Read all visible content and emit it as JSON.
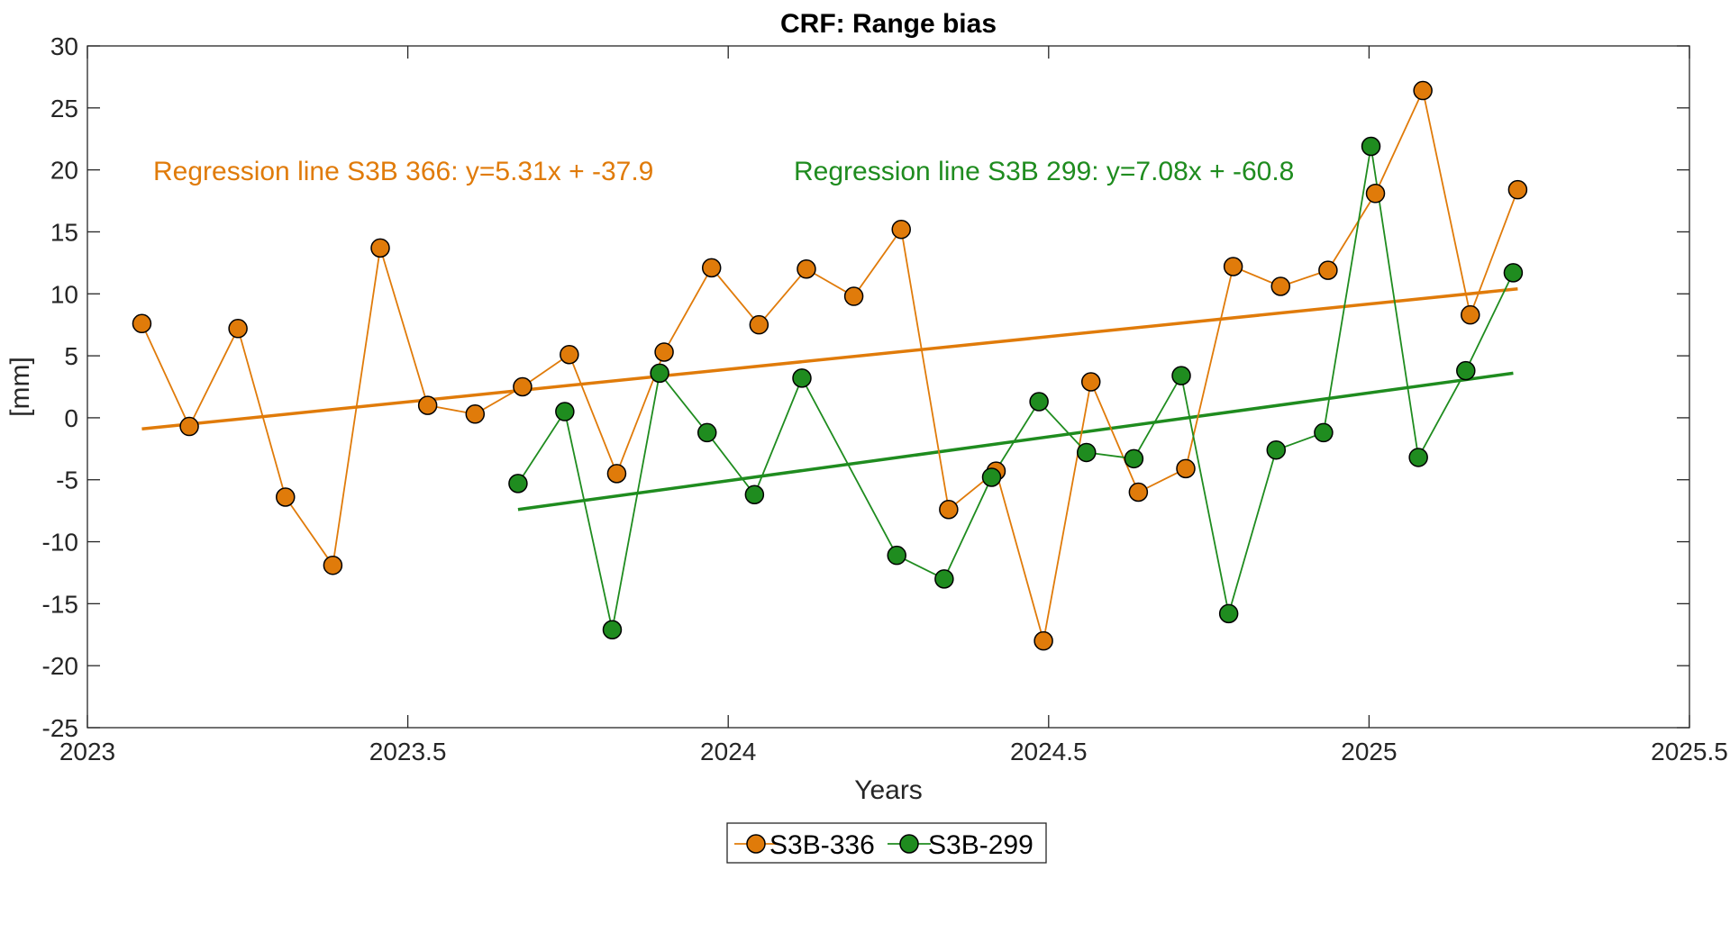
{
  "chart_data": {
    "type": "line",
    "title": "CRF: Range bias",
    "xlabel": "Years",
    "ylabel": "[mm]",
    "xlim": [
      2023,
      2025.5
    ],
    "ylim": [
      -25,
      30
    ],
    "xticks": [
      2023,
      2023.5,
      2024,
      2024.5,
      2025,
      2025.5
    ],
    "xtick_labels": [
      "2023",
      "2023.5",
      "2024",
      "2024.5",
      "2025",
      "2025.5"
    ],
    "yticks": [
      -25,
      -20,
      -15,
      -10,
      -5,
      0,
      5,
      10,
      15,
      20,
      25,
      30
    ],
    "ytick_labels": [
      "-25",
      "-20",
      "-15",
      "-10",
      "-5",
      "0",
      "5",
      "10",
      "15",
      "20",
      "25",
      "30"
    ],
    "grid": false,
    "legend_position": "bottom-center",
    "series": [
      {
        "name": "S3B-336",
        "color": "#e07b0a",
        "x": [
          2023.085,
          2023.159,
          2023.235,
          2023.309,
          2023.383,
          2023.457,
          2023.531,
          2023.605,
          2023.679,
          2023.752,
          2023.826,
          2023.9,
          2023.974,
          2024.048,
          2024.122,
          2024.196,
          2024.27,
          2024.344,
          2024.418,
          2024.492,
          2024.566,
          2024.64,
          2024.714,
          2024.788,
          2024.862,
          2024.936,
          2025.01,
          2025.084,
          2025.158,
          2025.232
        ],
        "y": [
          7.6,
          -0.7,
          7.2,
          -6.4,
          -11.9,
          13.7,
          1.0,
          0.3,
          2.5,
          5.1,
          -4.5,
          5.3,
          12.1,
          7.5,
          12.0,
          9.8,
          15.2,
          -7.4,
          -4.3,
          -18.0,
          2.9,
          -6.0,
          -4.1,
          12.2,
          10.6,
          11.9,
          18.1,
          26.4,
          8.3,
          18.4
        ]
      },
      {
        "name": "S3B-299",
        "color": "#1f8c1f",
        "x": [
          2023.672,
          2023.745,
          2023.819,
          2023.893,
          2023.967,
          2024.041,
          2024.115,
          2024.263,
          2024.337,
          2024.411,
          2024.485,
          2024.559,
          2024.633,
          2024.707,
          2024.781,
          2024.855,
          2024.929,
          2025.003,
          2025.077,
          2025.151,
          2025.225
        ],
        "y": [
          -5.3,
          0.5,
          -17.1,
          3.6,
          -1.2,
          -6.2,
          3.2,
          -11.1,
          -13.0,
          -4.8,
          1.3,
          -2.8,
          -3.3,
          3.4,
          -15.8,
          -2.6,
          -1.2,
          21.9,
          -3.2,
          3.8,
          11.7
        ]
      }
    ],
    "regressions": [
      {
        "name": "S3B-336",
        "color": "#e07b0a",
        "x": [
          2023.085,
          2025.232
        ],
        "y": [
          -0.9,
          10.4
        ]
      },
      {
        "name": "S3B-299",
        "color": "#1f8c1f",
        "x": [
          2023.672,
          2025.225
        ],
        "y": [
          -7.4,
          3.6
        ]
      }
    ],
    "annotations": [
      {
        "text": "Regression line S3B 366: y=5.31x + -37.9",
        "color": "#e07b0a"
      },
      {
        "text": "Regression line S3B 299: y=7.08x + -60.8",
        "color": "#1f8c1f"
      }
    ]
  }
}
